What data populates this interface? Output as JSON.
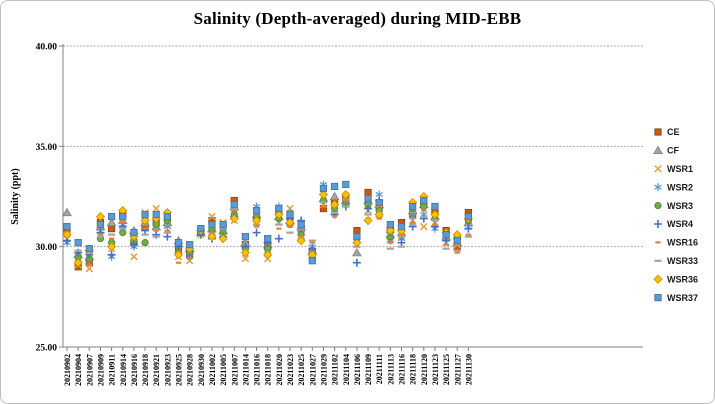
{
  "chart_data": {
    "type": "scatter",
    "title": "Salinity (Depth-averaged) during MID-EBB",
    "xlabel": "",
    "ylabel": "Salinity (ppt)",
    "ylim": [
      25.0,
      40.0
    ],
    "yticks": [
      {
        "value": 40,
        "label": "40.00"
      },
      {
        "value": 35,
        "label": "35.00"
      },
      {
        "value": 30,
        "label": "30.00"
      },
      {
        "value": 25,
        "label": "25.00"
      }
    ],
    "gridline_values": [
      40,
      35,
      30
    ],
    "grid": "horizontal-only",
    "legend_position": "right",
    "categories": [
      "20210902",
      "20210904",
      "20210907",
      "20210909",
      "20210911",
      "20210914",
      "20210916",
      "20210918",
      "20210921",
      "20210923",
      "20210925",
      "20210928",
      "20210930",
      "20211002",
      "20211005",
      "20211007",
      "20211014",
      "20211016",
      "20211018",
      "20211020",
      "20211023",
      "20211025",
      "20211027",
      "20211029",
      "20211102",
      "20211104",
      "20211106",
      "20211109",
      "20211111",
      "20211113",
      "20211116",
      "20211118",
      "20211120",
      "20211123",
      "20211125",
      "20211127",
      "20211130"
    ],
    "series": [
      {
        "name": "CE",
        "marker": "square",
        "color": "#C55A11",
        "border": "#8D4512",
        "values": [
          30.8,
          29.0,
          29.2,
          31.2,
          30.9,
          31.6,
          30.2,
          31.0,
          31.2,
          31.4,
          29.8,
          29.6,
          30.8,
          31.3,
          31.0,
          32.3,
          30.1,
          31.4,
          30.0,
          31.8,
          31.5,
          30.9,
          29.7,
          31.9,
          32.2,
          32.4,
          30.8,
          32.7,
          32.0,
          30.9,
          31.2,
          31.6,
          32.2,
          31.8,
          30.8,
          30.0,
          31.7
        ]
      },
      {
        "name": "CF",
        "marker": "triangle",
        "color": "#A5A5A5",
        "border": "#7F7F7F",
        "values": [
          31.7,
          29.6,
          29.5,
          31.0,
          31.2,
          31.3,
          30.8,
          31.2,
          31.0,
          31.2,
          30.3,
          29.9,
          30.7,
          30.9,
          30.8,
          32.0,
          30.2,
          31.6,
          30.1,
          31.5,
          31.3,
          31.0,
          29.8,
          32.4,
          32.5,
          32.3,
          29.7,
          32.3,
          32.1,
          30.6,
          30.7,
          31.8,
          32.1,
          31.5,
          30.5,
          30.2,
          31.2
        ]
      },
      {
        "name": "WSR1",
        "marker": "x",
        "color": "#DFA03C",
        "border": "#DFA03C",
        "values": [
          30.4,
          29.1,
          28.9,
          30.8,
          29.9,
          31.4,
          29.5,
          31.7,
          31.9,
          31.1,
          29.5,
          29.3,
          30.6,
          31.5,
          31.2,
          31.3,
          29.4,
          31.2,
          29.4,
          31.2,
          31.9,
          30.7,
          29.5,
          32.1,
          31.9,
          32.5,
          30.1,
          31.8,
          31.9,
          30.4,
          30.5,
          31.3,
          31.0,
          31.2,
          30.2,
          30.1,
          31.0
        ]
      },
      {
        "name": "WSR2",
        "marker": "asterisk",
        "color": "#5B9BD5",
        "border": "#5B9BD5",
        "values": [
          30.2,
          29.4,
          29.3,
          30.9,
          29.5,
          31.1,
          30.0,
          31.5,
          31.3,
          31.0,
          29.9,
          29.5,
          30.7,
          30.8,
          30.6,
          31.7,
          29.8,
          32.0,
          29.8,
          32.0,
          31.7,
          30.8,
          30.0,
          33.1,
          32.0,
          32.2,
          30.3,
          32.0,
          32.6,
          30.3,
          30.4,
          31.5,
          31.6,
          30.9,
          30.4,
          30.3,
          31.1
        ]
      },
      {
        "name": "WSR3",
        "marker": "circle",
        "color": "#70AD47",
        "border": "#548235",
        "values": [
          30.6,
          29.5,
          29.4,
          30.4,
          30.2,
          30.7,
          30.3,
          30.2,
          31.1,
          31.3,
          29.7,
          29.7,
          30.7,
          30.9,
          30.7,
          31.6,
          29.9,
          31.5,
          29.9,
          31.4,
          31.1,
          30.6,
          29.4,
          32.3,
          31.9,
          32.1,
          30.4,
          32.1,
          31.8,
          30.5,
          30.9,
          31.9,
          32.0,
          31.4,
          30.6,
          30.5,
          31.3
        ]
      },
      {
        "name": "WSR4",
        "marker": "plus",
        "color": "#4472C4",
        "border": "#4472C4",
        "values": [
          30.3,
          29.7,
          29.6,
          30.7,
          29.6,
          31.0,
          30.1,
          30.8,
          30.6,
          30.5,
          30.0,
          29.8,
          30.6,
          30.4,
          30.5,
          31.5,
          30.0,
          30.7,
          30.2,
          30.4,
          31.4,
          31.3,
          29.9,
          32.6,
          31.6,
          32.0,
          29.2,
          31.9,
          32.3,
          30.7,
          30.2,
          31.0,
          31.4,
          31.0,
          30.3,
          30.4,
          30.9
        ]
      },
      {
        "name": "WSR16",
        "marker": "dash-short",
        "color": "#ED7D31",
        "border": "#ED7D31",
        "values": [
          30.5,
          29.3,
          29.1,
          30.6,
          30.4,
          31.2,
          30.4,
          30.9,
          30.8,
          30.8,
          29.2,
          29.4,
          30.8,
          30.7,
          30.4,
          31.8,
          29.6,
          31.0,
          29.6,
          30.9,
          31.0,
          30.5,
          30.2,
          32.0,
          31.5,
          32.3,
          30.6,
          31.4,
          31.4,
          30.2,
          30.6,
          31.2,
          31.8,
          31.1,
          30.1,
          29.7,
          30.6
        ]
      },
      {
        "name": "WSR33",
        "marker": "dash-long",
        "color": "#A5A5A5",
        "border": "#A5A5A5",
        "values": [
          30.7,
          29.8,
          29.7,
          30.5,
          30.6,
          30.9,
          30.6,
          30.6,
          30.5,
          30.7,
          30.1,
          30.0,
          30.9,
          30.6,
          30.9,
          31.9,
          30.4,
          31.1,
          30.5,
          31.1,
          30.7,
          30.4,
          30.3,
          32.2,
          31.7,
          32.0,
          30.0,
          31.6,
          31.5,
          29.9,
          30.0,
          31.1,
          31.5,
          31.3,
          29.9,
          29.8,
          30.5
        ]
      },
      {
        "name": "WSR36",
        "marker": "diamond",
        "color": "#FFC000",
        "border": "#BF9000",
        "values": [
          30.6,
          29.2,
          29.8,
          31.5,
          30.0,
          31.8,
          30.5,
          31.3,
          31.4,
          31.7,
          29.6,
          29.9,
          30.8,
          30.5,
          30.4,
          31.4,
          29.7,
          31.3,
          29.6,
          31.6,
          31.2,
          30.3,
          29.6,
          32.6,
          32.1,
          32.6,
          30.2,
          31.3,
          31.6,
          30.8,
          30.8,
          32.2,
          32.5,
          31.6,
          30.7,
          30.6,
          31.4
        ]
      },
      {
        "name": "WSR37",
        "marker": "square",
        "color": "#5B9BD5",
        "border": "#41719C",
        "values": [
          31.0,
          30.2,
          29.9,
          31.1,
          31.5,
          31.5,
          30.7,
          31.6,
          31.6,
          31.5,
          30.2,
          30.1,
          30.9,
          31.1,
          31.1,
          32.1,
          30.5,
          31.8,
          30.4,
          31.9,
          31.6,
          31.1,
          29.3,
          32.9,
          33.0,
          33.1,
          30.5,
          32.4,
          32.2,
          31.1,
          31.0,
          32.0,
          32.3,
          32.0,
          30.6,
          30.3,
          31.5
        ]
      }
    ]
  }
}
